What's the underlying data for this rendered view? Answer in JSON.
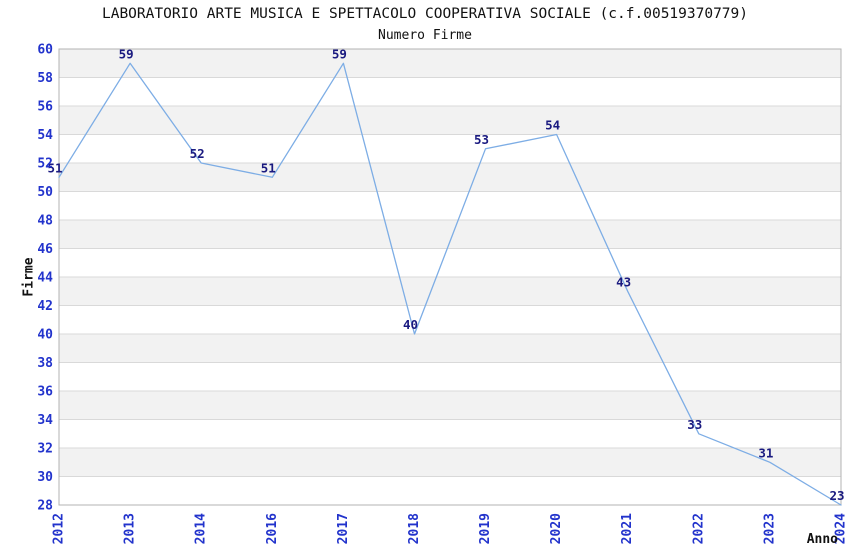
{
  "chart_data": {
    "type": "line",
    "title": "LABORATORIO ARTE MUSICA E SPETTACOLO COOPERATIVA SOCIALE (c.f.00519370779)",
    "subtitle": "Numero Firme",
    "xlabel": "Anno",
    "ylabel": "Firme",
    "categories": [
      "2012",
      "2013",
      "2014",
      "2016",
      "2017",
      "2018",
      "2019",
      "2020",
      "2021",
      "2022",
      "2023",
      "2024"
    ],
    "series": [
      {
        "name": "Numero Firme",
        "values": [
          51,
          59,
          52,
          51,
          59,
          40,
          53,
          54,
          43,
          33,
          31,
          23
        ]
      }
    ],
    "ylim": [
      28,
      60
    ],
    "ytick_step": 2,
    "legend": "none",
    "grid": "horizontal-bands",
    "point_labels_shown": true,
    "colors": {
      "line": "#7dade5",
      "point_label": "#1a1a80",
      "tick_label": "#2233cc",
      "band_gray": "#f2f2f2",
      "band_white": "#ffffff",
      "gridline": "#d9d9d9",
      "plot_border": "#b3b3b3",
      "text": "#111111",
      "background": "#ffffff"
    }
  }
}
